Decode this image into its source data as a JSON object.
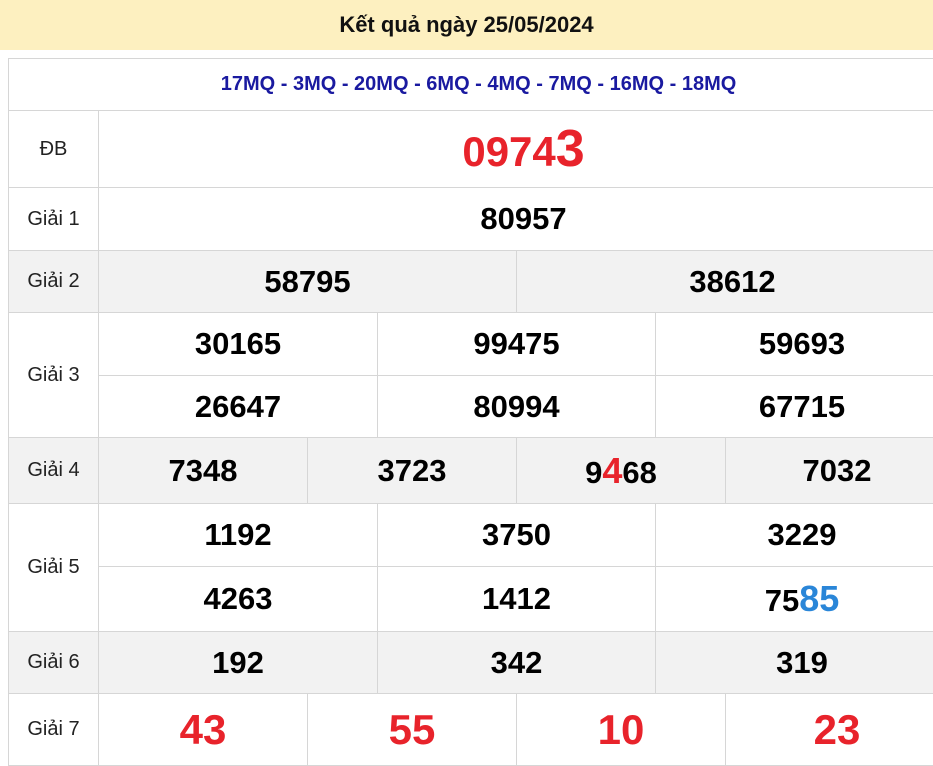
{
  "header": {
    "title": "Kết quả ngày 25/05/2024"
  },
  "stations": "17MQ - 3MQ - 20MQ - 6MQ - 4MQ - 7MQ - 16MQ - 18MQ",
  "labels": {
    "db": "ĐB",
    "g1": "Giải 1",
    "g2": "Giải 2",
    "g3": "Giải 3",
    "g4": "Giải 4",
    "g5": "Giải 5",
    "g6": "Giải 6",
    "g7": "Giải 7"
  },
  "db": {
    "prefix": "0974",
    "highlight": "3"
  },
  "g1": [
    "80957"
  ],
  "g2": [
    "58795",
    "38612"
  ],
  "g3": [
    "30165",
    "99475",
    "59693",
    "26647",
    "80994",
    "67715"
  ],
  "g4": [
    {
      "prefix": "7348",
      "highlight": "",
      "suffix": ""
    },
    {
      "prefix": "3723",
      "highlight": "",
      "suffix": ""
    },
    {
      "prefix": "9",
      "highlight": "4",
      "suffix": "68"
    },
    {
      "prefix": "7032",
      "highlight": "",
      "suffix": ""
    }
  ],
  "g5": [
    {
      "prefix": "1192",
      "highlight": ""
    },
    {
      "prefix": "3750",
      "highlight": ""
    },
    {
      "prefix": "3229",
      "highlight": ""
    },
    {
      "prefix": "4263",
      "highlight": ""
    },
    {
      "prefix": "1412",
      "highlight": ""
    },
    {
      "prefix": "75",
      "highlight": "85"
    }
  ],
  "g6": [
    "192",
    "342",
    "319"
  ],
  "g7": [
    "43",
    "55",
    "10",
    "23"
  ],
  "colors": {
    "header_bg": "#fdf0c0",
    "station": "#1a1aa0",
    "red": "#e8232b",
    "blue": "#2a86d8",
    "alt_row": "#f2f2f2"
  }
}
